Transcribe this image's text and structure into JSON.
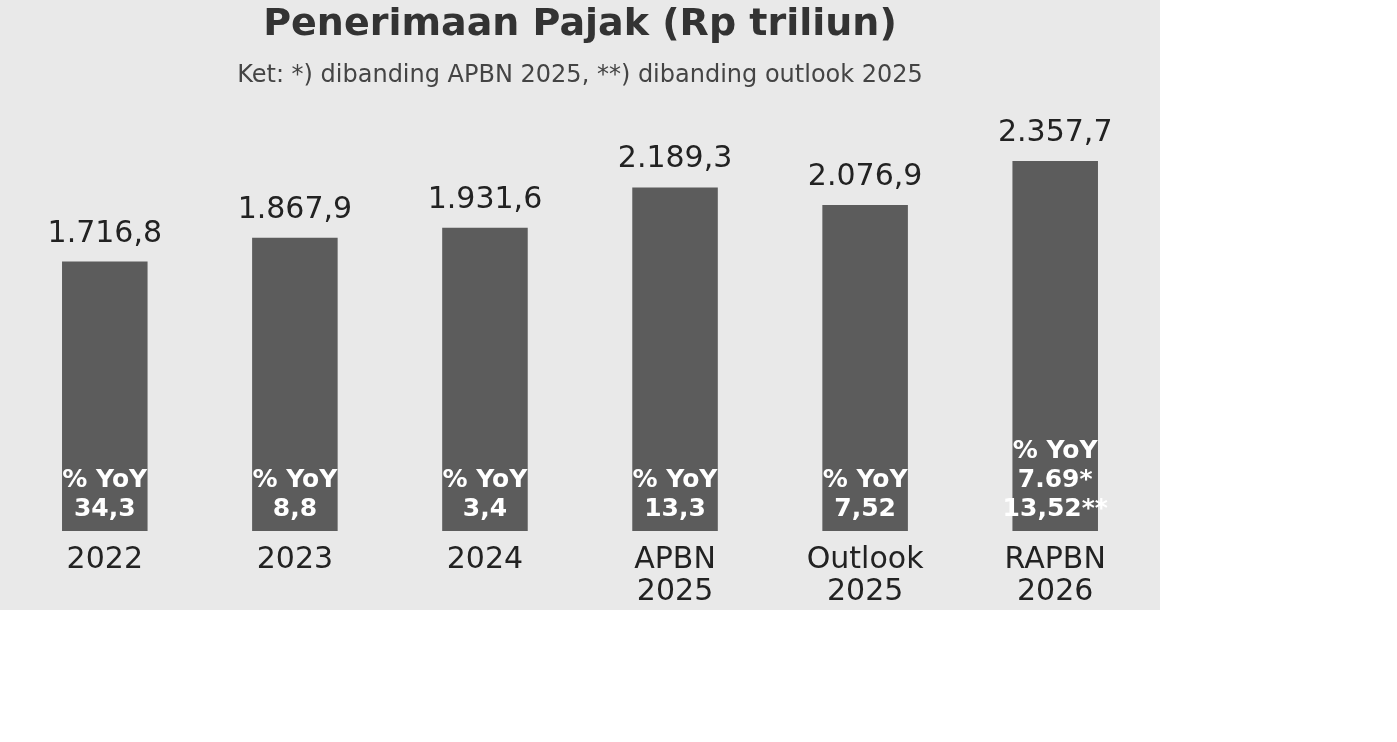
{
  "chart_data": {
    "type": "bar",
    "title": "Penerimaan Pajak (Rp triliun)",
    "subtitle": "Ket: *) dibanding APBN 2025, **) dibanding outlook 2025",
    "categories": [
      "2022",
      "2023",
      "2024",
      "APBN 2025",
      "Outlook 2025",
      "RAPBN 2026"
    ],
    "values": [
      1716.8,
      1867.9,
      1931.6,
      2189.3,
      2076.9,
      2357.7
    ],
    "value_labels": [
      "1.716,8",
      "1.867,9",
      "1.931,6",
      "2.189,3",
      "2.076,9",
      "2.357,7"
    ],
    "color": "#5c5c5c",
    "annotations": [
      "% YoY\n34,3",
      "% YoY\n8,8",
      "% YoY\n3,4",
      "% YoY\n13,3",
      "% YoY\n7,52",
      "% YoY\n7.69*\n13,52**"
    ],
    "grid": false
  }
}
